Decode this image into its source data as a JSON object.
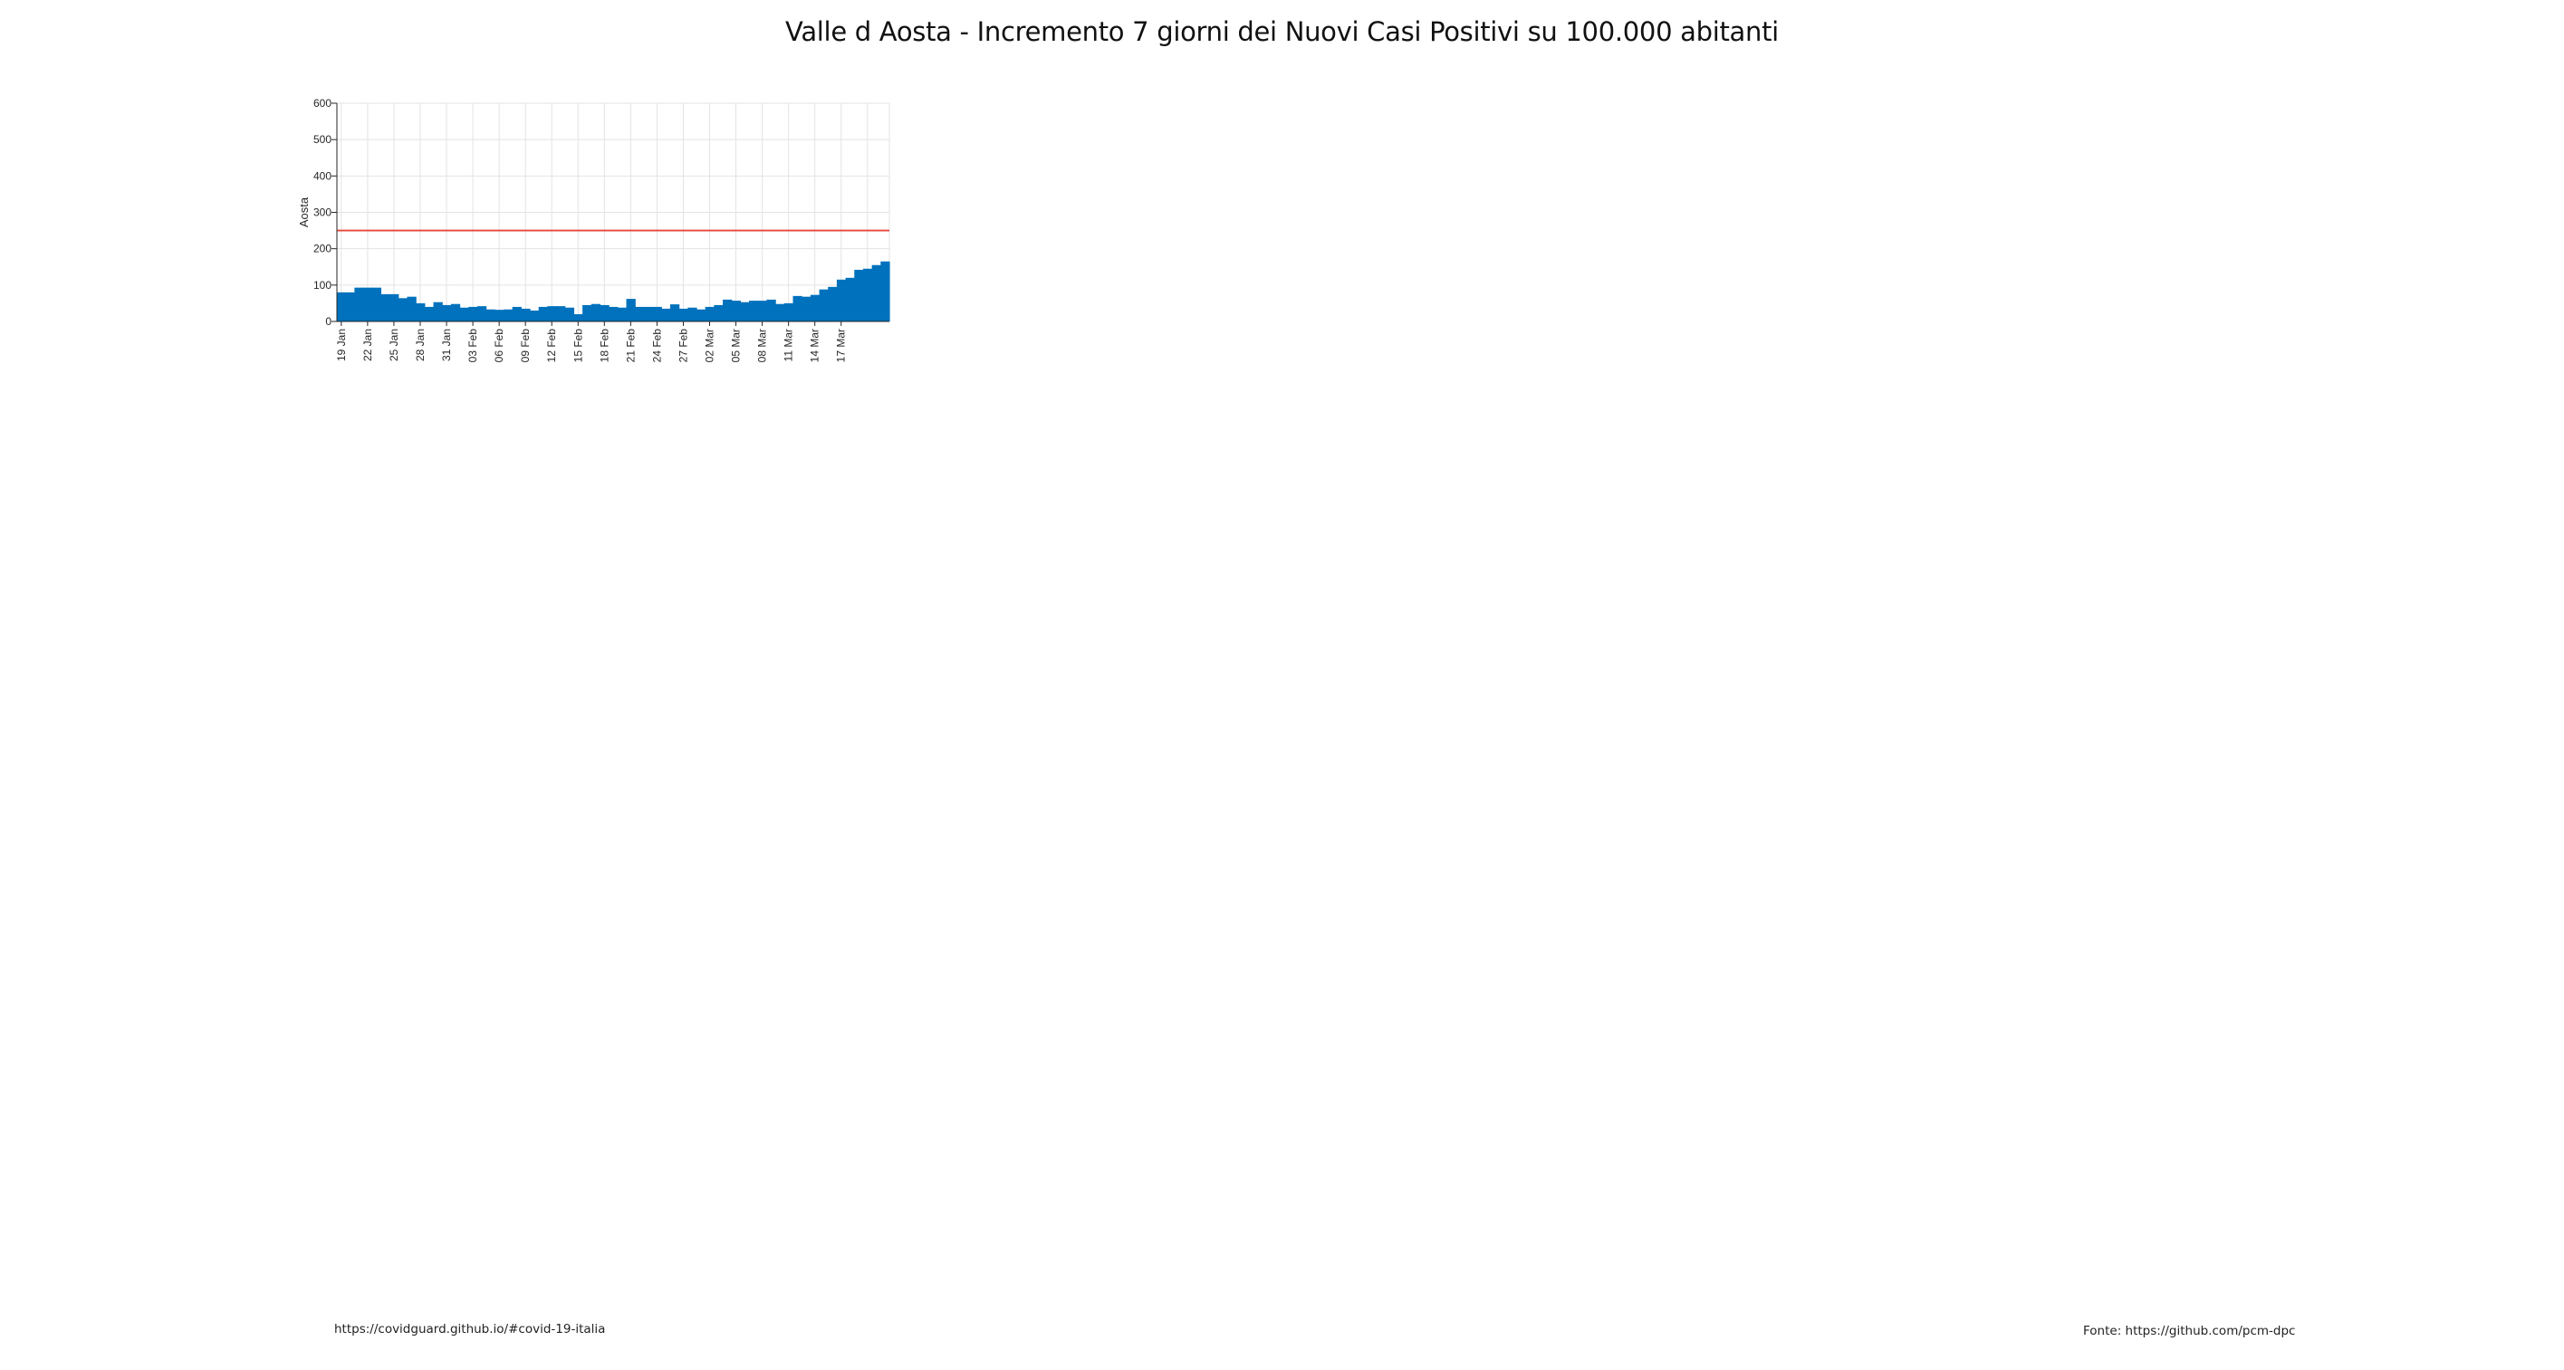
{
  "title": "Valle d Aosta - Incremento 7 giorni dei Nuovi Casi Positivi su 100.000 abitanti",
  "footer": {
    "left": "https://covidguard.github.io/#covid-19-italia",
    "right": "Fonte: https://github.com/pcm-dpc"
  },
  "colors": {
    "bar": "#0072BD",
    "threshold": "#E8453C",
    "grid": "#e3e3e3"
  },
  "chart_data": {
    "type": "bar",
    "title": "Valle d Aosta - Incremento 7 giorni dei Nuovi Casi Positivi su 100.000 abitanti",
    "ylabel": "Aosta",
    "xlabel": "",
    "ylim": [
      0,
      600
    ],
    "yticks": [
      0,
      100,
      200,
      300,
      400,
      500,
      600
    ],
    "grid": true,
    "threshold": 250,
    "x_tick_labels": [
      "19 Jan",
      "22 Jan",
      "25 Jan",
      "28 Jan",
      "31 Jan",
      "03 Feb",
      "06 Feb",
      "09 Feb",
      "12 Feb",
      "15 Feb",
      "18 Feb",
      "21 Feb",
      "24 Feb",
      "27 Feb",
      "02 Mar",
      "05 Mar",
      "08 Mar",
      "11 Mar",
      "14 Mar",
      "17 Mar"
    ],
    "tick_every": 3,
    "values": [
      80,
      80,
      93,
      93,
      93,
      75,
      75,
      64,
      68,
      50,
      40,
      53,
      45,
      48,
      38,
      40,
      42,
      33,
      32,
      33,
      40,
      35,
      30,
      40,
      42,
      42,
      38,
      20,
      45,
      48,
      45,
      40,
      38,
      62,
      40,
      40,
      40,
      35,
      47,
      35,
      38,
      33,
      40,
      45,
      60,
      57,
      53,
      57,
      57,
      60,
      48,
      50,
      70,
      68,
      73,
      88,
      95,
      115,
      120,
      142,
      145,
      155,
      165
    ]
  }
}
